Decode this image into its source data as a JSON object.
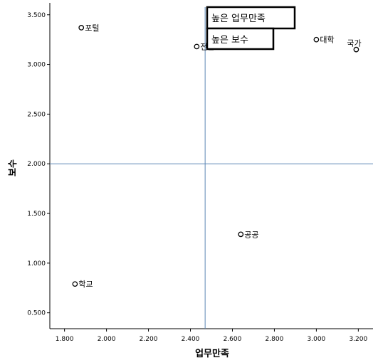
{
  "chart_data": {
    "type": "scatter",
    "xlabel": "업무만족",
    "ylabel": "보수",
    "xlim": [
      1.73,
      3.27
    ],
    "ylim": [
      0.34,
      3.62
    ],
    "xticks": [
      "1.800",
      "2.000",
      "2.200",
      "2.400",
      "2.600",
      "2.800",
      "3.000",
      "3.200"
    ],
    "yticks": [
      "0.500",
      "1.000",
      "1.500",
      "2.000",
      "2.500",
      "3.000",
      "3.500"
    ],
    "points": [
      {
        "label": "포털",
        "x": 1.88,
        "y": 3.37
      },
      {
        "label": "전문",
        "x": 2.43,
        "y": 3.18
      },
      {
        "label": "대학",
        "x": 3.0,
        "y": 3.25
      },
      {
        "label": "국가",
        "x": 3.19,
        "y": 3.15
      },
      {
        "label": "공공",
        "x": 2.64,
        "y": 1.29
      },
      {
        "label": "학교",
        "x": 1.85,
        "y": 0.79
      }
    ],
    "reference_lines": {
      "x": 2.47,
      "y": 2.0
    },
    "annotations": [
      "높은 업무만족",
      "높은 보수"
    ],
    "grid": false
  }
}
